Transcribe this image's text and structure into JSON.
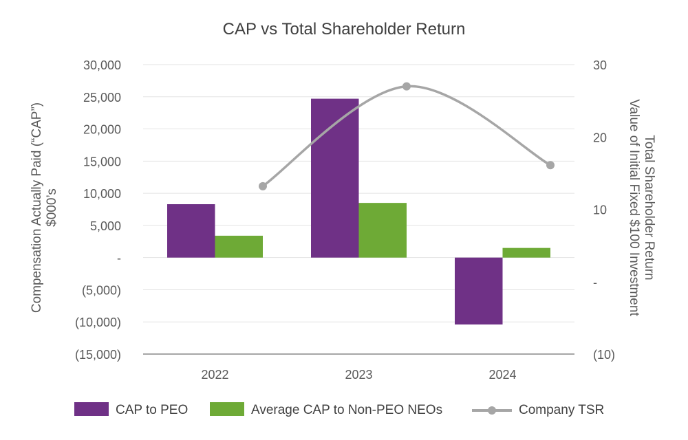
{
  "chart_data": {
    "type": "bar",
    "title": "CAP vs Total Shareholder Return",
    "categories": [
      "2022",
      "2023",
      "2024"
    ],
    "series": [
      {
        "name": "CAP to PEO",
        "type": "bar",
        "axis": "left",
        "values": [
          8300,
          24700,
          -10400
        ],
        "color": "#6f3186"
      },
      {
        "name": "Average CAP to Non-PEO NEOs",
        "type": "bar",
        "axis": "left",
        "values": [
          3400,
          8500,
          1500
        ],
        "color": "#6eaa36"
      },
      {
        "name": "Company TSR",
        "type": "line",
        "axis": "right",
        "values": [
          13.2,
          27,
          16.1
        ],
        "color": "#a6a6a6",
        "smooth": true
      }
    ],
    "left_axis": {
      "label_line1": "Compensation Actually Paid (“CAP”)",
      "label_line2": "$000’s",
      "min": -15000,
      "max": 30000,
      "ticks": [
        {
          "value": 30000,
          "label": "30,000"
        },
        {
          "value": 25000,
          "label": "25,000"
        },
        {
          "value": 20000,
          "label": "20,000"
        },
        {
          "value": 15000,
          "label": "15,000"
        },
        {
          "value": 10000,
          "label": "10,000"
        },
        {
          "value": 5000,
          "label": "5,000"
        },
        {
          "value": 0,
          "label": "-"
        },
        {
          "value": -5000,
          "label": "(5,000)"
        },
        {
          "value": -10000,
          "label": "(10,000)"
        },
        {
          "value": -15000,
          "label": "(15,000)"
        }
      ]
    },
    "right_axis": {
      "label_line1": "Total Shareholder Return",
      "label_line2": "Value of Initial Fixed $100 Investment",
      "min": -10,
      "max": 30,
      "ticks": [
        {
          "value": 30,
          "label": "30"
        },
        {
          "value": 20,
          "label": "20"
        },
        {
          "value": 10,
          "label": "10"
        },
        {
          "value": 0,
          "label": "-"
        },
        {
          "value": -10,
          "label": "(10)"
        }
      ]
    },
    "legend": [
      "CAP to PEO",
      "Average CAP to Non-PEO NEOs",
      "Company TSR"
    ],
    "legend_position": "bottom",
    "grid": true
  }
}
